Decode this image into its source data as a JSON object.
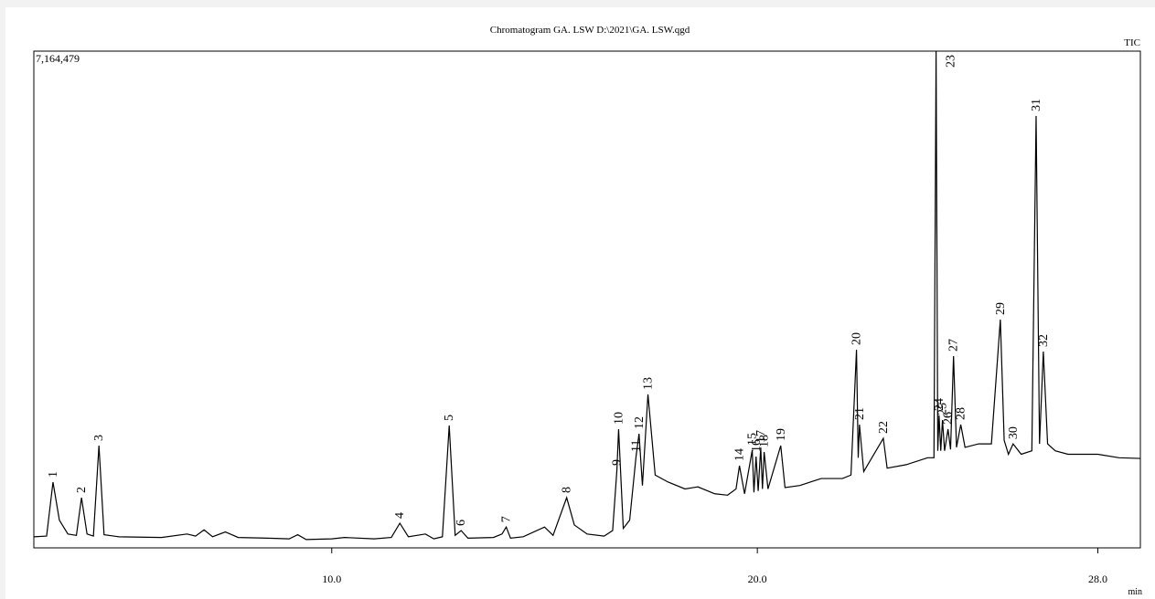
{
  "chart_data": {
    "type": "line",
    "title": "Chromatogram GA. LSW D:\\2021\\GA. LSW.qgd",
    "x_label": "min",
    "xlim": [
      3,
      29
    ],
    "xticks": [
      {
        "value": 10,
        "label": "10.0"
      },
      {
        "value": 20,
        "label": "20.0"
      },
      {
        "value": 28,
        "label": "28.0"
      }
    ],
    "ylim": [
      0,
      7164479
    ],
    "yticks": [
      {
        "value": 7164479,
        "label": "7,164,479"
      }
    ],
    "series": [
      {
        "name": "TIC",
        "color": "#000000",
        "x": [
          3.0,
          3.3,
          3.45,
          3.6,
          3.8,
          4.0,
          4.12,
          4.25,
          4.4,
          4.53,
          4.65,
          5.0,
          6.0,
          6.6,
          6.8,
          7.0,
          7.2,
          7.5,
          7.8,
          8.5,
          9.0,
          9.2,
          9.4,
          10.0,
          10.3,
          11.0,
          11.4,
          11.6,
          11.8,
          12.2,
          12.4,
          12.6,
          12.76,
          12.9,
          13.04,
          13.2,
          13.8,
          14.0,
          14.1,
          14.2,
          14.5,
          15.0,
          15.2,
          15.52,
          15.7,
          16.0,
          16.4,
          16.6,
          16.7,
          16.74,
          16.85,
          17.0,
          17.15,
          17.22,
          17.3,
          17.43,
          17.6,
          17.9,
          18.3,
          18.6,
          19.0,
          19.3,
          19.5,
          19.58,
          19.7,
          19.88,
          19.92,
          19.97,
          20.02,
          20.08,
          20.12,
          20.16,
          20.25,
          20.55,
          20.65,
          21.0,
          21.5,
          22.0,
          22.2,
          22.33,
          22.37,
          22.4,
          22.5,
          22.96,
          23.05,
          23.5,
          24.0,
          24.15,
          24.2,
          24.24,
          24.27,
          24.31,
          24.35,
          24.4,
          24.48,
          24.54,
          24.61,
          24.68,
          24.78,
          24.88,
          25.2,
          25.5,
          25.71,
          25.8,
          25.9,
          26.01,
          26.2,
          26.45,
          26.55,
          26.63,
          26.72,
          26.82,
          27.0,
          27.3,
          28.0,
          28.5,
          29.0
        ],
        "values": [
          160000,
          170000,
          948000,
          400000,
          200000,
          180000,
          724000,
          200000,
          170000,
          1475000,
          190000,
          160000,
          150000,
          200000,
          170000,
          260000,
          160000,
          230000,
          150000,
          140000,
          130000,
          190000,
          120000,
          130000,
          150000,
          130000,
          150000,
          356000,
          160000,
          200000,
          130000,
          160000,
          1765000,
          180000,
          250000,
          140000,
          150000,
          200000,
          300000,
          140000,
          160000,
          300000,
          180000,
          724000,
          330000,
          200000,
          170000,
          250000,
          1119000,
          1712000,
          280000,
          400000,
          1317000,
          1646000,
          900000,
          2213000,
          1050000,
          950000,
          850000,
          880000,
          780000,
          760000,
          850000,
          1185000,
          780000,
          1409000,
          800000,
          1317000,
          820000,
          1449000,
          850000,
          1383000,
          850000,
          1475000,
          870000,
          900000,
          1000000,
          1000000,
          1050000,
          2858000,
          1300000,
          1778000,
          1100000,
          1580000,
          1150000,
          1200000,
          1300000,
          1300000,
          7164479,
          1400000,
          1910000,
          1400000,
          1844000,
          1400000,
          1712000,
          1420000,
          2766000,
          1450000,
          1778000,
          1450000,
          1500000,
          1500000,
          3293000,
          1550000,
          1350000,
          1500000,
          1350000,
          1400000,
          6229000,
          1500000,
          2832000,
          1500000,
          1400000,
          1350000,
          1350000,
          1300000,
          1290000
        ]
      }
    ],
    "annotations": [
      {
        "label": "1",
        "x": 3.45,
        "y": 948000
      },
      {
        "label": "2",
        "x": 4.12,
        "y": 724000
      },
      {
        "label": "3",
        "x": 4.53,
        "y": 1475000
      },
      {
        "label": "4",
        "x": 11.6,
        "y": 356000
      },
      {
        "label": "5",
        "x": 12.76,
        "y": 1765000
      },
      {
        "label": "6",
        "x": 13.04,
        "y": 250000
      },
      {
        "label": "7",
        "x": 14.1,
        "y": 300000
      },
      {
        "label": "8",
        "x": 15.52,
        "y": 724000
      },
      {
        "label": "9",
        "x": 16.7,
        "y": 1119000
      },
      {
        "label": "10",
        "x": 16.74,
        "y": 1712000
      },
      {
        "label": "11",
        "x": 17.15,
        "y": 1317000
      },
      {
        "label": "12",
        "x": 17.22,
        "y": 1646000
      },
      {
        "label": "13",
        "x": 17.43,
        "y": 2213000
      },
      {
        "label": "14",
        "x": 19.58,
        "y": 1185000
      },
      {
        "label": "15",
        "x": 19.88,
        "y": 1409000
      },
      {
        "label": "16",
        "x": 19.97,
        "y": 1317000
      },
      {
        "label": "17",
        "x": 20.08,
        "y": 1449000
      },
      {
        "label": "18",
        "x": 20.16,
        "y": 1383000
      },
      {
        "label": "19",
        "x": 20.55,
        "y": 1475000
      },
      {
        "label": "20",
        "x": 22.33,
        "y": 2858000
      },
      {
        "label": "21",
        "x": 22.4,
        "y": 1778000
      },
      {
        "label": "22",
        "x": 22.96,
        "y": 1580000
      },
      {
        "label": "23",
        "x": 24.2,
        "y": 7164479
      },
      {
        "label": "24",
        "x": 24.27,
        "y": 1910000
      },
      {
        "label": "25",
        "x": 24.35,
        "y": 1844000
      },
      {
        "label": "26",
        "x": 24.48,
        "y": 1712000
      },
      {
        "label": "27",
        "x": 24.61,
        "y": 2766000
      },
      {
        "label": "28",
        "x": 24.78,
        "y": 1778000
      },
      {
        "label": "29",
        "x": 25.71,
        "y": 3293000
      },
      {
        "label": "30",
        "x": 26.01,
        "y": 1500000
      },
      {
        "label": "31",
        "x": 26.55,
        "y": 6229000
      },
      {
        "label": "32",
        "x": 26.72,
        "y": 2832000
      }
    ]
  }
}
